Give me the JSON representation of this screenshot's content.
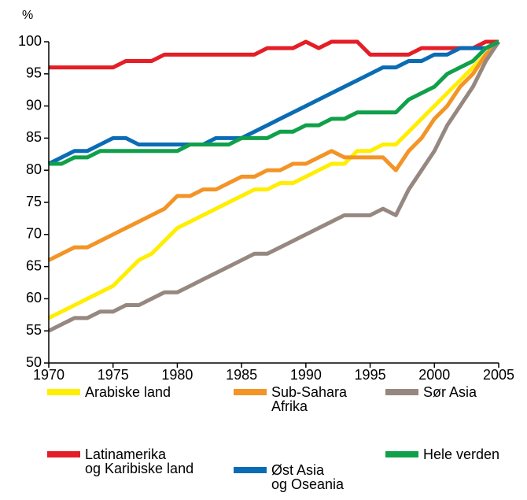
{
  "chart_data": {
    "type": "line",
    "y_label": "%",
    "x": [
      1970,
      1971,
      1972,
      1973,
      1974,
      1975,
      1976,
      1977,
      1978,
      1979,
      1980,
      1981,
      1982,
      1983,
      1984,
      1985,
      1986,
      1987,
      1988,
      1989,
      1990,
      1991,
      1992,
      1993,
      1994,
      1995,
      1996,
      1997,
      1998,
      1999,
      2000,
      2001,
      2002,
      2003,
      2004,
      2005
    ],
    "xlim": [
      1970,
      2005
    ],
    "xticks": [
      1970,
      1975,
      1980,
      1985,
      1990,
      1995,
      2000,
      2005
    ],
    "ylim": [
      50,
      100
    ],
    "yticks": [
      50,
      55,
      60,
      65,
      70,
      75,
      80,
      85,
      90,
      95,
      100
    ],
    "grid": false,
    "series": [
      {
        "name": "Arabiske land",
        "color": "#ffee00",
        "values": [
          57,
          58,
          59,
          60,
          61,
          62,
          64,
          66,
          67,
          69,
          71,
          72,
          73,
          74,
          75,
          76,
          77,
          77,
          78,
          78,
          79,
          80,
          81,
          81,
          83,
          83,
          84,
          84,
          86,
          88,
          90,
          92,
          94,
          96,
          98,
          100
        ]
      },
      {
        "name": "Sub-Sahara\nAfrika",
        "color": "#f39426",
        "values": [
          66,
          67,
          68,
          68,
          69,
          70,
          71,
          72,
          73,
          74,
          76,
          76,
          77,
          77,
          78,
          79,
          79,
          80,
          80,
          81,
          81,
          82,
          83,
          82,
          82,
          82,
          82,
          80,
          83,
          85,
          88,
          90,
          93,
          95,
          98,
          100
        ]
      },
      {
        "name": "Sør Asia",
        "color": "#968880",
        "values": [
          55,
          56,
          57,
          57,
          58,
          58,
          59,
          59,
          60,
          61,
          61,
          62,
          63,
          64,
          65,
          66,
          67,
          67,
          68,
          69,
          70,
          71,
          72,
          73,
          73,
          73,
          74,
          73,
          77,
          80,
          83,
          87,
          90,
          93,
          97,
          100
        ]
      },
      {
        "name": "Latinamerika\nog Karibiske land",
        "color": "#e41e26",
        "values": [
          96,
          96,
          96,
          96,
          96,
          96,
          97,
          97,
          97,
          98,
          98,
          98,
          98,
          98,
          98,
          98,
          98,
          99,
          99,
          99,
          100,
          99,
          100,
          100,
          100,
          98,
          98,
          98,
          98,
          99,
          99,
          99,
          99,
          99,
          100,
          100
        ]
      },
      {
        "name": "Øst Asia\nog Oseania",
        "color": "#0a6cb5",
        "values": [
          81,
          82,
          83,
          83,
          84,
          85,
          85,
          84,
          84,
          84,
          84,
          84,
          84,
          85,
          85,
          85,
          86,
          87,
          88,
          89,
          90,
          91,
          92,
          93,
          94,
          95,
          96,
          96,
          97,
          97,
          98,
          98,
          99,
          99,
          99,
          100
        ]
      },
      {
        "name": "Hele verden",
        "color": "#10a04a",
        "values": [
          81,
          81,
          82,
          82,
          83,
          83,
          83,
          83,
          83,
          83,
          83,
          84,
          84,
          84,
          84,
          85,
          85,
          85,
          86,
          86,
          87,
          87,
          88,
          88,
          89,
          89,
          89,
          89,
          91,
          92,
          93,
          95,
          96,
          97,
          99,
          100
        ]
      }
    ]
  }
}
